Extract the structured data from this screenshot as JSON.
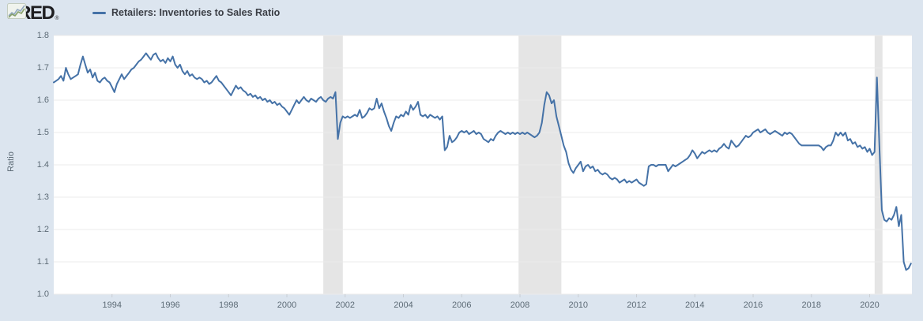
{
  "header": {
    "logo_text": "FRED",
    "registered_mark": "®",
    "legend": {
      "label": "Retailers: Inventories to Sales Ratio"
    }
  },
  "colors": {
    "background": "#dce5ef",
    "plot_background": "#ffffff",
    "line": "#4572a7",
    "recession_band": "#e5e5e5",
    "gridline": "#ebebeb",
    "tick_mark": "#c9ced4",
    "axis_text": "#5d6b76",
    "legend_text": "#3b3e45",
    "logo_text": "#1e1e21",
    "icon_green": "#86a06a",
    "icon_blue": "#93a9c0"
  },
  "chart_data": {
    "type": "line",
    "title": "Retailers: Inventories to Sales Ratio",
    "ylabel": "Ratio",
    "xlabel": "",
    "x_range": [
      1992.0,
      2021.45
    ],
    "ylim": [
      1.0,
      1.8
    ],
    "y_ticks": [
      1.0,
      1.1,
      1.2,
      1.3,
      1.4,
      1.5,
      1.6,
      1.7,
      1.8
    ],
    "x_ticks": [
      1994,
      1996,
      1998,
      2000,
      2002,
      2004,
      2006,
      2008,
      2010,
      2012,
      2014,
      2016,
      2018,
      2020
    ],
    "grid": "horizontal-only",
    "legend_position": "top-left-header",
    "recessions": [
      [
        2001.25,
        2001.92
      ],
      [
        2007.95,
        2009.42
      ],
      [
        2020.17,
        2020.44
      ]
    ],
    "series": [
      {
        "name": "Retailers: Inventories to Sales Ratio",
        "color": "#4572a7",
        "frequency": "monthly",
        "points_start_year": 1992,
        "points_per_year": 12,
        "values": [
          1.655,
          1.66,
          1.665,
          1.675,
          1.66,
          1.7,
          1.68,
          1.665,
          1.67,
          1.675,
          1.68,
          1.71,
          1.735,
          1.71,
          1.685,
          1.695,
          1.67,
          1.685,
          1.66,
          1.655,
          1.665,
          1.67,
          1.66,
          1.655,
          1.64,
          1.625,
          1.65,
          1.665,
          1.68,
          1.665,
          1.675,
          1.685,
          1.695,
          1.7,
          1.71,
          1.72,
          1.725,
          1.735,
          1.745,
          1.735,
          1.725,
          1.74,
          1.745,
          1.73,
          1.72,
          1.725,
          1.715,
          1.73,
          1.72,
          1.735,
          1.71,
          1.7,
          1.71,
          1.69,
          1.68,
          1.69,
          1.675,
          1.68,
          1.67,
          1.665,
          1.67,
          1.665,
          1.655,
          1.66,
          1.65,
          1.655,
          1.665,
          1.675,
          1.66,
          1.655,
          1.645,
          1.635,
          1.625,
          1.615,
          1.63,
          1.645,
          1.635,
          1.64,
          1.63,
          1.625,
          1.615,
          1.62,
          1.61,
          1.615,
          1.605,
          1.61,
          1.6,
          1.605,
          1.595,
          1.6,
          1.59,
          1.595,
          1.585,
          1.59,
          1.58,
          1.575,
          1.565,
          1.555,
          1.57,
          1.585,
          1.6,
          1.59,
          1.6,
          1.61,
          1.6,
          1.595,
          1.605,
          1.6,
          1.595,
          1.605,
          1.61,
          1.6,
          1.595,
          1.605,
          1.61,
          1.605,
          1.625,
          1.48,
          1.53,
          1.55,
          1.545,
          1.55,
          1.545,
          1.55,
          1.555,
          1.55,
          1.57,
          1.545,
          1.55,
          1.56,
          1.575,
          1.57,
          1.575,
          1.605,
          1.575,
          1.59,
          1.565,
          1.545,
          1.52,
          1.505,
          1.53,
          1.55,
          1.545,
          1.555,
          1.55,
          1.565,
          1.555,
          1.585,
          1.57,
          1.58,
          1.595,
          1.555,
          1.55,
          1.555,
          1.545,
          1.555,
          1.55,
          1.545,
          1.55,
          1.54,
          1.55,
          1.445,
          1.455,
          1.49,
          1.47,
          1.475,
          1.485,
          1.5,
          1.505,
          1.5,
          1.505,
          1.495,
          1.5,
          1.505,
          1.495,
          1.5,
          1.495,
          1.48,
          1.475,
          1.47,
          1.48,
          1.475,
          1.49,
          1.5,
          1.505,
          1.5,
          1.495,
          1.5,
          1.495,
          1.5,
          1.495,
          1.5,
          1.495,
          1.5,
          1.495,
          1.5,
          1.495,
          1.49,
          1.485,
          1.49,
          1.5,
          1.53,
          1.585,
          1.625,
          1.615,
          1.59,
          1.6,
          1.55,
          1.52,
          1.49,
          1.46,
          1.44,
          1.405,
          1.385,
          1.375,
          1.39,
          1.4,
          1.41,
          1.38,
          1.395,
          1.4,
          1.39,
          1.395,
          1.38,
          1.385,
          1.375,
          1.37,
          1.375,
          1.37,
          1.36,
          1.355,
          1.36,
          1.355,
          1.345,
          1.35,
          1.355,
          1.345,
          1.35,
          1.345,
          1.35,
          1.355,
          1.345,
          1.34,
          1.335,
          1.34,
          1.395,
          1.4,
          1.4,
          1.395,
          1.4,
          1.4,
          1.4,
          1.4,
          1.38,
          1.39,
          1.4,
          1.395,
          1.4,
          1.405,
          1.41,
          1.415,
          1.42,
          1.43,
          1.445,
          1.435,
          1.42,
          1.43,
          1.44,
          1.435,
          1.44,
          1.445,
          1.44,
          1.445,
          1.44,
          1.45,
          1.455,
          1.465,
          1.455,
          1.45,
          1.475,
          1.465,
          1.455,
          1.46,
          1.47,
          1.48,
          1.49,
          1.485,
          1.49,
          1.5,
          1.505,
          1.51,
          1.5,
          1.505,
          1.51,
          1.5,
          1.495,
          1.5,
          1.505,
          1.5,
          1.495,
          1.49,
          1.5,
          1.495,
          1.5,
          1.495,
          1.485,
          1.475,
          1.465,
          1.46,
          1.46,
          1.46,
          1.46,
          1.46,
          1.46,
          1.46,
          1.46,
          1.455,
          1.445,
          1.455,
          1.46,
          1.46,
          1.475,
          1.5,
          1.49,
          1.5,
          1.49,
          1.5,
          1.475,
          1.48,
          1.465,
          1.47,
          1.455,
          1.46,
          1.45,
          1.455,
          1.44,
          1.45,
          1.43,
          1.44,
          1.67,
          1.46,
          1.26,
          1.23,
          1.225,
          1.235,
          1.23,
          1.245,
          1.27,
          1.21,
          1.245,
          1.1,
          1.075,
          1.08,
          1.095
        ]
      }
    ]
  }
}
